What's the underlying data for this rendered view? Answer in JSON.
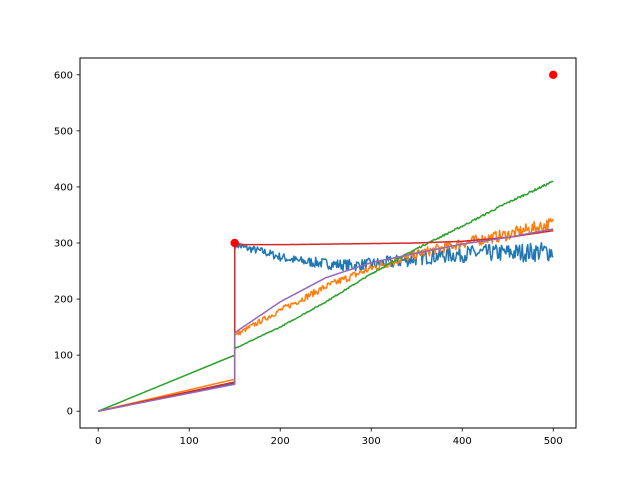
{
  "chart_data": {
    "type": "line",
    "title": "",
    "xlabel": "",
    "ylabel": "",
    "xlim": [
      -20,
      525
    ],
    "ylim": [
      -30,
      630
    ],
    "x_ticks": [
      0,
      100,
      200,
      300,
      400,
      500
    ],
    "y_ticks": [
      0,
      100,
      200,
      300,
      400,
      500,
      600
    ],
    "grid": false,
    "legend": "none",
    "colors": {
      "blue": "#1f77b4",
      "orange": "#ff7f0e",
      "green": "#2ca02c",
      "red": "#d62728",
      "purple": "#9467bd",
      "marker": "#ff0000"
    },
    "series": [
      {
        "color": "#1f77b4",
        "noise": 18,
        "points": [
          [
            0,
            0
          ],
          [
            150,
            50
          ],
          [
            150,
            298
          ],
          [
            160,
            292
          ],
          [
            180,
            285
          ],
          [
            200,
            275
          ],
          [
            220,
            268
          ],
          [
            240,
            265
          ],
          [
            260,
            262
          ],
          [
            280,
            260
          ],
          [
            300,
            262
          ],
          [
            320,
            265
          ],
          [
            340,
            270
          ],
          [
            360,
            275
          ],
          [
            380,
            278
          ],
          [
            400,
            280
          ],
          [
            420,
            282
          ],
          [
            440,
            282
          ],
          [
            460,
            283
          ],
          [
            480,
            284
          ],
          [
            500,
            285
          ]
        ]
      },
      {
        "color": "#ff7f0e",
        "noise": 12,
        "points": [
          [
            0,
            0
          ],
          [
            150,
            57
          ],
          [
            150,
            135
          ],
          [
            200,
            180
          ],
          [
            250,
            222
          ],
          [
            300,
            255
          ],
          [
            350,
            280
          ],
          [
            400,
            300
          ],
          [
            450,
            315
          ],
          [
            500,
            335
          ]
        ]
      },
      {
        "color": "#2ca02c",
        "noise": 2,
        "points": [
          [
            0,
            0
          ],
          [
            150,
            100
          ],
          [
            150,
            112
          ],
          [
            200,
            150
          ],
          [
            250,
            195
          ],
          [
            300,
            245
          ],
          [
            350,
            290
          ],
          [
            400,
            330
          ],
          [
            450,
            372
          ],
          [
            500,
            410
          ]
        ]
      },
      {
        "color": "#d62728",
        "noise": 0,
        "points": [
          [
            0,
            0
          ],
          [
            150,
            52
          ],
          [
            150,
            300
          ],
          [
            160,
            297
          ],
          [
            200,
            297
          ],
          [
            250,
            298
          ],
          [
            300,
            299
          ],
          [
            350,
            300
          ],
          [
            400,
            303
          ],
          [
            450,
            310
          ],
          [
            500,
            322
          ]
        ]
      },
      {
        "color": "#9467bd",
        "noise": 0,
        "points": [
          [
            0,
            0
          ],
          [
            150,
            48
          ],
          [
            150,
            140
          ],
          [
            200,
            195
          ],
          [
            250,
            238
          ],
          [
            300,
            265
          ],
          [
            350,
            282
          ],
          [
            400,
            298
          ],
          [
            450,
            310
          ],
          [
            500,
            325
          ]
        ]
      }
    ],
    "markers": [
      {
        "x": 150,
        "y": 300,
        "color": "#ff0000"
      },
      {
        "x": 500,
        "y": 600,
        "color": "#ff0000"
      }
    ]
  }
}
